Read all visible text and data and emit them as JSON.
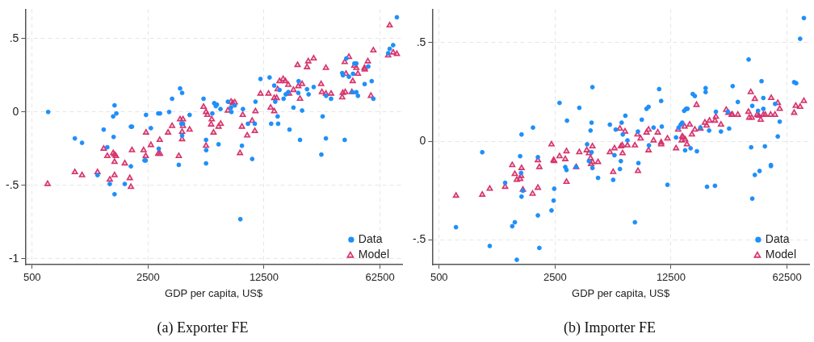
{
  "chart_data": [
    {
      "type": "scatter",
      "title": "(a) Exporter FE",
      "xlabel": "GDP per capita, US$",
      "log": "x",
      "grid": true,
      "legend": "bottom right",
      "xlim": [
        455,
        85000
      ],
      "xticks": [
        500,
        2500,
        12500,
        62500
      ],
      "ylim": [
        -1.04,
        0.7
      ],
      "yticks": [
        {
          "value": -1,
          "label": "-1"
        },
        {
          "value": -0.5,
          "label": "-.5"
        },
        0,
        {
          "value": 0.5,
          "label": ".5"
        }
      ],
      "series": [
        {
          "name": "Data",
          "color": "#1e8ffa",
          "marker": "circle",
          "x": [
            625,
            905,
            1000,
            1240,
            1350,
            1420,
            1470,
            1540,
            1550,
            1570,
            1570,
            1610,
            1810,
            1970,
            2000,
            1970,
            2380,
            2420,
            2430,
            2600,
            2880,
            2950,
            2900,
            3350,
            3490,
            3830,
            3900,
            4010,
            3970,
            4060,
            4010,
            4450,
            5400,
            5590,
            5590,
            5600,
            6260,
            6400,
            6100,
            6500,
            6830,
            6650,
            7570,
            7900,
            7950,
            8330,
            9330,
            9200,
            10000,
            11000,
            11100,
            10600,
            9000,
            11900,
            13500,
            14400,
            15500,
            14600,
            13800,
            15100,
            15200,
            16400,
            16900,
            17500,
            17800,
            18800,
            20200,
            20100,
            20600,
            21200,
            22700,
            23200,
            24900,
            28200,
            27700,
            29500,
            29600,
            31700,
            37000,
            37400,
            38300,
            39200,
            40600,
            43000,
            43800,
            45000,
            42600,
            45000,
            46000,
            50500,
            53100,
            55700,
            57000,
            70000,
            71500,
            75000,
            79000
          ],
          "values": [
            0,
            -0.18,
            -0.21,
            -0.43,
            -0.12,
            -0.24,
            -0.49,
            -0.03,
            -0.17,
            0.045,
            -0.56,
            -0.01,
            -0.49,
            -0.1,
            -0.1,
            -0.37,
            -0.33,
            -0.33,
            -0.02,
            -0.11,
            -0.01,
            -0.01,
            -0.25,
            0,
            0.09,
            -0.36,
            0.16,
            0.13,
            -0.08,
            -0.08,
            -0.16,
            -0.02,
            0.09,
            -0.19,
            -0.35,
            -0.26,
            0.06,
            0.04,
            -0.01,
            0.05,
            0.02,
            -0.22,
            0.07,
            0.03,
            0,
            0.045,
            0.02,
            -0.23,
            -0.08,
            -0.08,
            0.07,
            -0.32,
            -0.73,
            0.225,
            0.235,
            0.18,
            0.15,
            0.07,
            -0.08,
            -0.03,
            -0.08,
            0.09,
            0.12,
            0.135,
            -0.12,
            0.03,
            0.21,
            0.13,
            -0.19,
            0.01,
            0.155,
            0.12,
            0.17,
            -0.03,
            -0.29,
            -0.18,
            0.11,
            0.09,
            0.265,
            0.25,
            -0.19,
            0.365,
            0.24,
            0.26,
            0.33,
            0.33,
            0.135,
            0.135,
            0.11,
            0.19,
            0.31,
            0.21,
            0.09,
            0.4,
            0.43,
            0.455,
            0.645
          ]
        },
        {
          "name": "Model",
          "color": "#d6336c",
          "marker": "triangle",
          "x": [
            620,
            905,
            1000,
            1240,
            1350,
            1420,
            1470,
            1540,
            1570,
            1600,
            1570,
            1570,
            1810,
            1940,
            1970,
            2000,
            2350,
            2420,
            2430,
            2600,
            2880,
            2950,
            2940,
            3300,
            3490,
            3830,
            3900,
            4010,
            4010,
            4060,
            4060,
            4450,
            5400,
            5590,
            5590,
            5700,
            6050,
            6000,
            6200,
            6650,
            6850,
            7570,
            7900,
            8100,
            8330,
            8950,
            9200,
            9300,
            9900,
            10600,
            11100,
            11000,
            11900,
            13300,
            13700,
            14400,
            14400,
            14900,
            15100,
            15500,
            16300,
            16800,
            17500,
            17700,
            18800,
            20100,
            19900,
            20600,
            21200,
            22700,
            23100,
            24900,
            27600,
            27900,
            29500,
            29500,
            31700,
            37000,
            37300,
            38600,
            38300,
            39000,
            40600,
            42800,
            42300,
            43800,
            45000,
            46000,
            50400,
            50600,
            52800,
            55100,
            57000,
            70000,
            71500,
            75000,
            79000
          ],
          "values": [
            -0.49,
            -0.41,
            -0.43,
            -0.41,
            -0.25,
            -0.3,
            -0.46,
            -0.28,
            -0.29,
            -0.3,
            -0.34,
            -0.43,
            -0.35,
            -0.45,
            -0.51,
            -0.26,
            -0.26,
            -0.3,
            -0.14,
            -0.225,
            -0.285,
            -0.285,
            -0.19,
            -0.14,
            -0.095,
            -0.3,
            -0.05,
            -0.135,
            -0.185,
            -0.05,
            -0.095,
            -0.12,
            0.035,
            0,
            -0.23,
            -0.02,
            -0.05,
            -0.085,
            -0.14,
            -0.1,
            -0.08,
            0.01,
            0.07,
            0.06,
            0.065,
            -0.28,
            -0.1,
            -0.02,
            -0.16,
            -0.06,
            0.005,
            -0.13,
            0.125,
            0.125,
            0.03,
            0.005,
            0.095,
            0.095,
            0.155,
            0.21,
            0.225,
            0.21,
            0.185,
            0.125,
            0.15,
            0.175,
            0.32,
            0.09,
            0.19,
            0.305,
            0.345,
            0.365,
            0.19,
            0.135,
            0.3,
            0.125,
            0.125,
            0.1,
            0.13,
            0.135,
            0.34,
            0.26,
            0.375,
            0.21,
            0.135,
            0.315,
            0.3,
            0.26,
            0.3,
            0.29,
            0.345,
            0.11,
            0.42,
            0.385,
            0.59,
            0.405,
            0.395
          ]
        }
      ]
    },
    {
      "type": "scatter",
      "title": "(b) Importer FE",
      "xlabel": "GDP per capita, US$",
      "log": "x",
      "grid": true,
      "legend": "bottom right",
      "xlim": [
        455,
        85000
      ],
      "xticks": [
        500,
        2500,
        12500,
        62500
      ],
      "ylim": [
        -0.625,
        0.67
      ],
      "yticks": [
        {
          "value": -0.5,
          "label": "-.5"
        },
        0,
        {
          "value": 0.5,
          "label": ".5"
        }
      ],
      "series": [
        {
          "name": "Data",
          "color": "#1e8ffa",
          "marker": "circle",
          "x": [
            632,
            910,
            1010,
            1250,
            1380,
            1430,
            1470,
            1540,
            1570,
            1560,
            1570,
            1600,
            1840,
            1970,
            1970,
            2010,
            2380,
            2450,
            2470,
            2660,
            2880,
            2930,
            2950,
            3350,
            3500,
            3900,
            4000,
            4090,
            4150,
            4200,
            4150,
            4200,
            4540,
            5350,
            5600,
            5700,
            5800,
            6150,
            6230,
            6300,
            6400,
            6630,
            6830,
            7570,
            7900,
            7950,
            8330,
            8900,
            9150,
            9200,
            9810,
            10600,
            10900,
            11000,
            11900,
            13400,
            13900,
            14300,
            14600,
            15000,
            15400,
            15700,
            15200,
            16400,
            16900,
            17400,
            17900,
            18800,
            20200,
            20200,
            20600,
            21200,
            23000,
            23300,
            25000,
            28000,
            27500,
            29400,
            31600,
            36700,
            38000,
            38600,
            38600,
            40000,
            41800,
            42700,
            43900,
            45000,
            45000,
            46000,
            50000,
            50000,
            53000,
            55000,
            56500,
            69000,
            71000,
            75000,
            79000
          ],
          "values": [
            -0.435,
            -0.055,
            -0.53,
            -0.21,
            -0.43,
            -0.41,
            -0.6,
            -0.075,
            0.035,
            -0.16,
            -0.28,
            -0.25,
            0.07,
            -0.08,
            -0.375,
            -0.54,
            -0.35,
            -0.3,
            -0.24,
            0.195,
            -0.13,
            -0.145,
            0.105,
            -0.13,
            0.17,
            -0.015,
            -0.1,
            0.055,
            0.095,
            0.275,
            -0.055,
            -0.135,
            -0.185,
            0.085,
            -0.195,
            -0.07,
            0.06,
            -0.14,
            -0.1,
            0.095,
            0.035,
            0.13,
            0.005,
            -0.41,
            0.05,
            -0.11,
            0.11,
            0.165,
            0.175,
            -0.02,
            0.07,
            0.265,
            0.205,
            0.075,
            -0.22,
            0.02,
            0.07,
            0.085,
            0.095,
            0.155,
            0.165,
            0.165,
            -0.045,
            -0.035,
            0.24,
            0.23,
            -0.05,
            0.07,
            0.27,
            0.25,
            -0.23,
            0.055,
            -0.225,
            0.15,
            0.05,
            0.065,
            0.15,
            0.28,
            0.2,
            0.415,
            -0.03,
            0.18,
            -0.29,
            -0.17,
            0.155,
            -0.15,
            0.305,
            0.22,
            0.165,
            -0.025,
            -0.12,
            -0.125,
            0.19,
            0.025,
            0.1,
            0.3,
            0.295,
            0.52,
            0.625
          ]
        },
        {
          "name": "Model",
          "color": "#d6336c",
          "marker": "triangle",
          "x": [
            632,
            910,
            1010,
            1250,
            1380,
            1430,
            1470,
            1540,
            1560,
            1570,
            1600,
            1830,
            1970,
            1970,
            2010,
            2380,
            2450,
            2470,
            2660,
            2880,
            2930,
            2930,
            3350,
            3500,
            3880,
            4000,
            4090,
            4120,
            4200,
            4200,
            4540,
            5350,
            5700,
            5600,
            6150,
            6230,
            6350,
            6380,
            6600,
            6830,
            7570,
            7850,
            7900,
            8200,
            8900,
            9150,
            9150,
            9810,
            10400,
            10900,
            10900,
            11900,
            13400,
            13800,
            14500,
            14800,
            15200,
            14600,
            15600,
            15100,
            16200,
            16700,
            17400,
            17800,
            18800,
            20000,
            20500,
            21300,
            23000,
            23300,
            25000,
            26900,
            27700,
            29000,
            29300,
            31600,
            36600,
            37000,
            37800,
            38300,
            40000,
            41300,
            42200,
            43400,
            45000,
            46200,
            49800,
            50200,
            52900,
            55000,
            56500,
            69000,
            70600,
            75000,
            79000
          ],
          "values": [
            -0.275,
            -0.27,
            -0.24,
            -0.23,
            -0.12,
            -0.165,
            -0.195,
            -0.19,
            -0.175,
            -0.135,
            -0.245,
            -0.265,
            -0.235,
            -0.095,
            -0.13,
            -0.015,
            -0.095,
            -0.1,
            -0.075,
            -0.09,
            -0.05,
            -0.205,
            -0.13,
            -0.055,
            -0.045,
            -0.06,
            -0.085,
            -0.115,
            -0.025,
            -0.105,
            -0.105,
            -0.055,
            -0.035,
            -0.155,
            0.065,
            -0.025,
            -0.02,
            -0.06,
            0.05,
            -0.02,
            -0.02,
            0.035,
            -0.15,
            0.015,
            0.045,
            0.06,
            -0.045,
            0.005,
            0.045,
            -0.005,
            -0.015,
            0.015,
            -0.035,
            0.06,
            0.005,
            0.02,
            0.01,
            0.025,
            -0.015,
            0.075,
            0.085,
            0.035,
            0.06,
            0.185,
            0.065,
            0.095,
            0.08,
            0.105,
            0.105,
            0.125,
            0.085,
            0.16,
            0.145,
            0.135,
            0.135,
            0.135,
            0.15,
            0.12,
            0.25,
            0.12,
            0.215,
            0.135,
            0.13,
            0.11,
            0.135,
            0.135,
            0.135,
            0.22,
            0.135,
            0.195,
            0.165,
            0.145,
            0.18,
            0.175,
            0.205
          ]
        }
      ]
    }
  ]
}
